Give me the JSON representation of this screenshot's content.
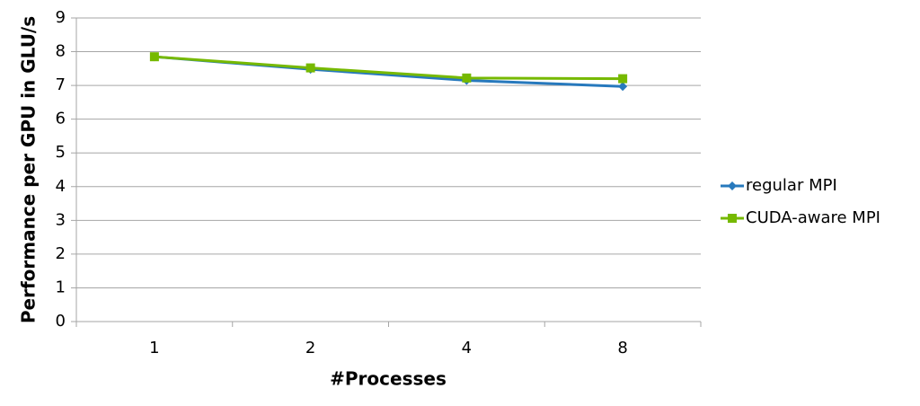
{
  "chart_data": {
    "type": "line",
    "x_label": "#Processes",
    "y_label": "Performance per GPU in GLU/s",
    "categories": [
      "1",
      "2",
      "4",
      "8"
    ],
    "series": [
      {
        "name": "regular MPI",
        "color": "#2779bd",
        "marker": "diamond",
        "values": [
          7.85,
          7.48,
          7.15,
          6.97
        ]
      },
      {
        "name": "CUDA-aware MPI",
        "color": "#76b900",
        "marker": "square",
        "values": [
          7.85,
          7.52,
          7.22,
          7.2
        ]
      }
    ],
    "ylim": [
      0,
      9
    ],
    "yticks": [
      0,
      1,
      2,
      3,
      4,
      5,
      6,
      7,
      8,
      9
    ],
    "grid": true,
    "legend": "right"
  }
}
